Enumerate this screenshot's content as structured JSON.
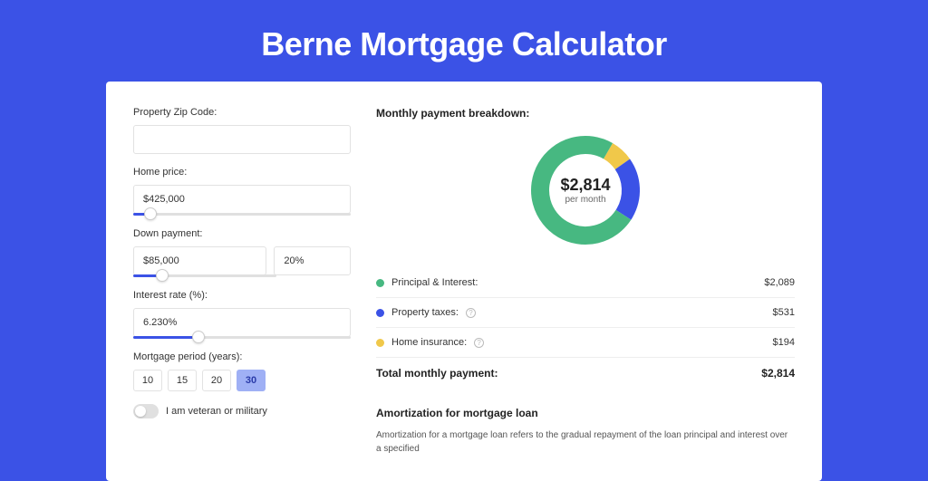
{
  "page": {
    "title": "Berne Mortgage Calculator",
    "background_color": "#3b52e6",
    "card_background": "#ffffff"
  },
  "form": {
    "zip_label": "Property Zip Code:",
    "zip_value": "",
    "home_price_label": "Home price:",
    "home_price_value": "$425,000",
    "home_price_slider_pct": 8,
    "down_payment_label": "Down payment:",
    "down_payment_value": "$85,000",
    "down_payment_pct": "20%",
    "down_payment_slider_pct": 20,
    "interest_label": "Interest rate (%):",
    "interest_value": "6.230%",
    "interest_slider_pct": 30,
    "period_label": "Mortgage period (years):",
    "periods": [
      {
        "label": "10",
        "selected": false
      },
      {
        "label": "15",
        "selected": false
      },
      {
        "label": "20",
        "selected": false
      },
      {
        "label": "30",
        "selected": true
      }
    ],
    "veteran_label": "I am veteran or military",
    "veteran_on": false
  },
  "breakdown": {
    "heading": "Monthly payment breakdown:",
    "center_amount": "$2,814",
    "center_sub": "per month",
    "items": [
      {
        "label": "Principal & Interest:",
        "value": "$2,089",
        "color": "#47b881",
        "has_info": false,
        "fraction": 0.742
      },
      {
        "label": "Property taxes:",
        "value": "$531",
        "color": "#3b52e6",
        "has_info": true,
        "fraction": 0.189
      },
      {
        "label": "Home insurance:",
        "value": "$194",
        "color": "#f0c84a",
        "has_info": true,
        "fraction": 0.069
      }
    ],
    "total_label": "Total monthly payment:",
    "total_value": "$2,814",
    "donut": {
      "radius": 50,
      "stroke_width": 20,
      "background": "#ffffff"
    }
  },
  "amortization": {
    "heading": "Amortization for mortgage loan",
    "text": "Amortization for a mortgage loan refers to the gradual repayment of the loan principal and interest over a specified"
  }
}
